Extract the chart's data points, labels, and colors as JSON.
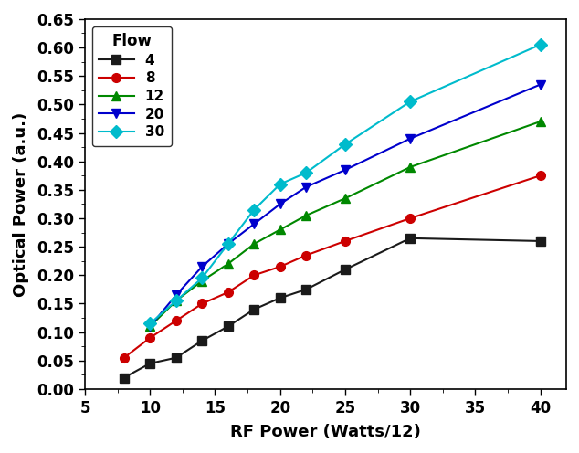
{
  "series": [
    {
      "label": "4",
      "color": "#1a1a1a",
      "marker": "s",
      "x": [
        8,
        10,
        12,
        14,
        16,
        18,
        20,
        22,
        25,
        30,
        40
      ],
      "y": [
        0.02,
        0.045,
        0.055,
        0.085,
        0.11,
        0.14,
        0.16,
        0.175,
        0.21,
        0.265,
        0.26
      ]
    },
    {
      "label": "8",
      "color": "#cc0000",
      "marker": "o",
      "x": [
        8,
        10,
        12,
        14,
        16,
        18,
        20,
        22,
        25,
        30,
        40
      ],
      "y": [
        0.055,
        0.09,
        0.12,
        0.15,
        0.17,
        0.2,
        0.215,
        0.235,
        0.26,
        0.3,
        0.375
      ]
    },
    {
      "label": "12",
      "color": "#008800",
      "marker": "^",
      "x": [
        10,
        12,
        14,
        16,
        18,
        20,
        22,
        25,
        30,
        40
      ],
      "y": [
        0.11,
        0.155,
        0.19,
        0.22,
        0.255,
        0.28,
        0.305,
        0.335,
        0.39,
        0.47
      ]
    },
    {
      "label": "20",
      "color": "#0000cc",
      "marker": "v",
      "x": [
        10,
        12,
        14,
        16,
        18,
        20,
        22,
        25,
        30,
        40
      ],
      "y": [
        0.11,
        0.165,
        0.215,
        0.255,
        0.29,
        0.325,
        0.355,
        0.385,
        0.44,
        0.535
      ]
    },
    {
      "label": "30",
      "color": "#00bbcc",
      "marker": "D",
      "x": [
        10,
        12,
        14,
        16,
        18,
        20,
        22,
        25,
        30,
        40
      ],
      "y": [
        0.115,
        0.155,
        0.195,
        0.255,
        0.315,
        0.36,
        0.38,
        0.43,
        0.505,
        0.605
      ]
    }
  ],
  "xlabel": "RF Power (Watts/12)",
  "ylabel": "Optical Power (a.u.)",
  "xlim": [
    5,
    42
  ],
  "ylim": [
    0.0,
    0.65
  ],
  "xticks": [
    5,
    10,
    15,
    20,
    25,
    30,
    35,
    40
  ],
  "yticks": [
    0.0,
    0.05,
    0.1,
    0.15,
    0.2,
    0.25,
    0.3,
    0.35,
    0.4,
    0.45,
    0.5,
    0.55,
    0.6,
    0.65
  ],
  "legend_title": "Flow",
  "legend_loc": "upper left",
  "marker_size": 7,
  "linewidth": 1.5,
  "background_color": "#ffffff",
  "tick_labelsize": 12,
  "axis_labelsize": 13
}
